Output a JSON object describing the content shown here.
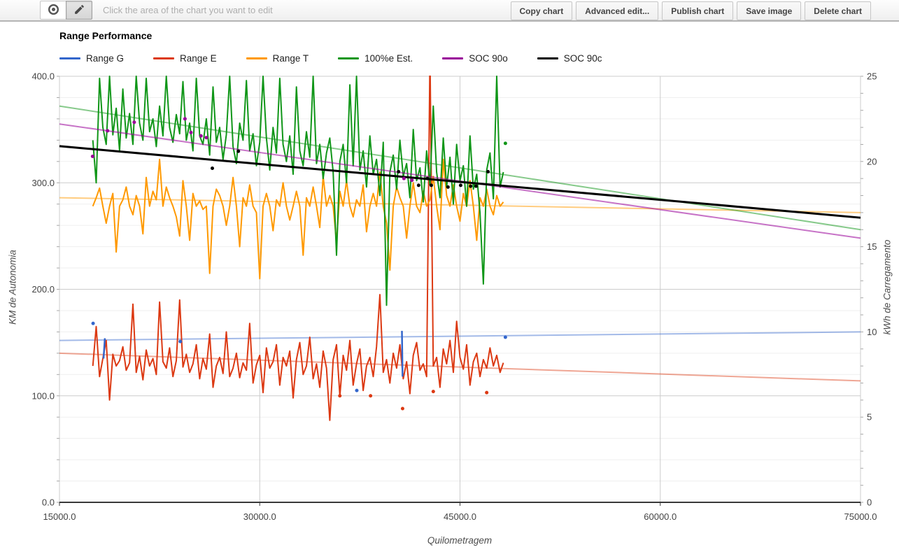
{
  "toolbar": {
    "instruction": "Click the area of the chart you want to edit",
    "buttons": [
      "Copy chart",
      "Advanced edit...",
      "Publish chart",
      "Save image",
      "Delete chart"
    ],
    "mode_buttons": [
      {
        "icon": "eye",
        "active": false
      },
      {
        "icon": "pencil",
        "active": true
      }
    ]
  },
  "chart_data": {
    "type": "line",
    "title": "Range Performance",
    "x_axis": {
      "label": "Quilometragem",
      "min": 15000,
      "max": 75000,
      "ticks": [
        15000,
        30000,
        45000,
        60000,
        75000
      ],
      "tick_labels": [
        "15000.0",
        "30000.0",
        "45000.0",
        "60000.0",
        "75000.0"
      ]
    },
    "y_left": {
      "label": "KM de Autonomia",
      "min": 0,
      "max": 400,
      "minor_step": 20,
      "ticks": [
        0,
        100,
        200,
        300,
        400
      ],
      "tick_labels": [
        "0.0",
        "100.0",
        "200.0",
        "300.0",
        "400.0"
      ]
    },
    "y_right": {
      "label": "kWh de Carregamento",
      "min": 0,
      "max": 25,
      "minor_step": 1,
      "ticks": [
        0,
        5,
        10,
        15,
        20,
        25
      ],
      "tick_labels": [
        "0",
        "5",
        "10",
        "15",
        "20",
        "25"
      ]
    },
    "style": {
      "grid_major": "#cccccc",
      "grid_minor": "#efefef",
      "baseline": "#3a3a3a",
      "tick_mark": "#a8a8a8",
      "tick_text": "#444444"
    },
    "series": [
      {
        "name": "Range G",
        "color": "#3366cc",
        "axis": "left",
        "trend": {
          "x": [
            15000,
            75000
          ],
          "y": [
            152,
            160
          ],
          "opacity": 0.45,
          "width": 2
        },
        "segments": [
          [
            [
              18300,
              135
            ],
            [
              18400,
              154
            ]
          ],
          [
            [
              40650,
              161
            ],
            [
              40700,
              118
            ]
          ]
        ],
        "points": [
          [
            17520,
            168
          ],
          [
            24050,
            151
          ],
          [
            37270,
            105
          ],
          [
            48400,
            155
          ]
        ]
      },
      {
        "name": "Range E",
        "color": "#dc3912",
        "axis": "left",
        "trend": {
          "x": [
            15000,
            75000
          ],
          "y": [
            140,
            114
          ],
          "opacity": 0.45,
          "width": 2
        },
        "line": {
          "x_start": 17500,
          "x_step": 250,
          "values": [
            128,
            165,
            118,
            135,
            152,
            96,
            139,
            128,
            133,
            146,
            124,
            131,
            186,
            122,
            137,
            115,
            143,
            128,
            135,
            120,
            188,
            132,
            126,
            145,
            118,
            133,
            190,
            127,
            139,
            122,
            130,
            148,
            116,
            135,
            125,
            158,
            108,
            128,
            136,
            121,
            160,
            118,
            126,
            140,
            117,
            131,
            124,
            168,
            112,
            129,
            138,
            103,
            145,
            126,
            132,
            148,
            110,
            136,
            128,
            142,
            98,
            134,
            150,
            120,
            128,
            155,
            116,
            130,
            108,
            142,
            126,
            77,
            134,
            148,
            100,
            138,
            124,
            152,
            110,
            130,
            144,
            105,
            128,
            136,
            118,
            146,
            195,
            122,
            134,
            112,
            140,
            126,
            148,
            116,
            132,
            102,
            138,
            150,
            124,
            130,
            118,
            420,
            128,
            136,
            108,
            144,
            130,
            152,
            122,
            170,
            136,
            125,
            148,
            110,
            132,
            140,
            118,
            134,
            126,
            145,
            128,
            138,
            122,
            131
          ]
        },
        "points": [
          [
            36000,
            100
          ],
          [
            38300,
            100
          ],
          [
            40700,
            88
          ],
          [
            43000,
            104
          ],
          [
            47000,
            103
          ]
        ]
      },
      {
        "name": "Range T",
        "color": "#ff9900",
        "axis": "left",
        "trend": {
          "x": [
            15000,
            75000
          ],
          "y": [
            286,
            272
          ],
          "opacity": 0.5,
          "width": 2
        },
        "line": {
          "x_start": 17500,
          "x_step": 250,
          "values": [
            278,
            286,
            295,
            278,
            262,
            278,
            290,
            235,
            278,
            284,
            296,
            278,
            270,
            288,
            278,
            252,
            305,
            278,
            292,
            284,
            322,
            278,
            296,
            286,
            278,
            268,
            250,
            302,
            278,
            246,
            290,
            278,
            283,
            275,
            278,
            215,
            278,
            294,
            288,
            278,
            260,
            278,
            305,
            278,
            240,
            286,
            278,
            298,
            278,
            272,
            210,
            278,
            290,
            278,
            255,
            284,
            278,
            300,
            278,
            265,
            278,
            292,
            278,
            232,
            286,
            278,
            296,
            278,
            258,
            306,
            278,
            288,
            278,
            244,
            292,
            278,
            302,
            278,
            268,
            284,
            278,
            298,
            254,
            278,
            290,
            278,
            310,
            278,
            262,
            218,
            278,
            296,
            286,
            278,
            248,
            278,
            300,
            278,
            272,
            292,
            278,
            284,
            306,
            278,
            256,
            322,
            288,
            278,
            298,
            278,
            264,
            290,
            278,
            302,
            278,
            246,
            286,
            278,
            294,
            278,
            270,
            288,
            278,
            282
          ]
        }
      },
      {
        "name": "100%e Est.",
        "color": "#109618",
        "axis": "left",
        "trend": {
          "x": [
            15000,
            75000
          ],
          "y": [
            372,
            256
          ],
          "opacity": 0.5,
          "width": 2
        },
        "line": {
          "x_start": 17500,
          "x_step": 250,
          "values": [
            340,
            300,
            398,
            352,
            336,
            400,
            345,
            370,
            330,
            388,
            342,
            365,
            336,
            400,
            356,
            340,
            398,
            348,
            360,
            334,
            372,
            344,
            400,
            352,
            338,
            364,
            346,
            395,
            340,
            356,
            330,
            398,
            344,
            336,
            360,
            326,
            390,
            338,
            352,
            322,
            345,
            400,
            334,
            318,
            356,
            340,
            396,
            330,
            346,
            316,
            338,
            400,
            342,
            312,
            352,
            328,
            398,
            336,
            320,
            344,
            308,
            390,
            330,
            316,
            348,
            324,
            400,
            318,
            336,
            304,
            328,
            342,
            310,
            232,
            320,
            336,
            300,
            392,
            316,
            400,
            312,
            330,
            296,
            344,
            308,
            322,
            288,
            338,
            185,
            310,
            326,
            294,
            340,
            306,
            318,
            286,
            350,
            302,
            314,
            282,
            330,
            298,
            372,
            310,
            286,
            342,
            296,
            324,
            280,
            336,
            302,
            316,
            278,
            344,
            294,
            308,
            272,
            205,
            312,
            328,
            285,
            400,
            296,
            310
          ]
        },
        "points": [
          [
            48400,
            337
          ]
        ]
      },
      {
        "name": "SOC 90o",
        "color": "#990099",
        "axis": "right",
        "trend": {
          "x": [
            15000,
            75000
          ],
          "y": [
            22.2,
            15.5
          ],
          "opacity": 0.55,
          "width": 2
        },
        "points": [
          [
            17480,
            20.3
          ],
          [
            18600,
            21.8
          ],
          [
            20600,
            22.3
          ],
          [
            24400,
            22.5
          ],
          [
            24850,
            21.7
          ],
          [
            25600,
            21.5
          ],
          [
            26000,
            21.4
          ],
          [
            40800,
            19.0
          ],
          [
            41400,
            18.9
          ]
        ]
      },
      {
        "name": "SOC 90c",
        "color": "#000000",
        "axis": "right",
        "trend": {
          "x": [
            15000,
            75000
          ],
          "y": [
            20.9,
            16.7
          ],
          "opacity": 1,
          "width": 3
        },
        "points": [
          [
            26450,
            19.6
          ],
          [
            28400,
            20.6
          ],
          [
            40400,
            19.4
          ],
          [
            41900,
            18.6
          ],
          [
            42550,
            19.0
          ],
          [
            42850,
            18.6
          ],
          [
            44100,
            18.5
          ],
          [
            45050,
            18.6
          ],
          [
            45800,
            18.55
          ],
          [
            46200,
            18.55
          ],
          [
            47100,
            19.4
          ]
        ]
      }
    ]
  }
}
